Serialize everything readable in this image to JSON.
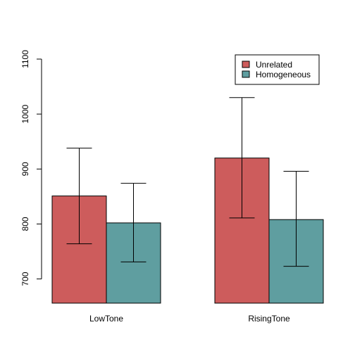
{
  "chart_data": {
    "type": "bar",
    "title": "",
    "xlabel": "",
    "ylabel": "",
    "categories": [
      "LowTone",
      "RisingTone"
    ],
    "series": [
      {
        "name": "Unrelated",
        "color": "#CD5C5C",
        "values": [
          851,
          920
        ],
        "error_low": [
          764,
          811
        ],
        "error_high": [
          938,
          1030
        ]
      },
      {
        "name": "Homogeneous",
        "color": "#5F9EA0",
        "values": [
          802,
          808
        ],
        "error_low": [
          731,
          723
        ],
        "error_high": [
          874,
          896
        ]
      }
    ],
    "ylim": [
      656,
      1100
    ],
    "yticks": [
      700,
      800,
      900,
      1000,
      1100
    ],
    "ytick_labels": [
      "700",
      "800",
      "900",
      "1000",
      "1100"
    ],
    "legend": {
      "position": "top-right",
      "entries": [
        "Unrelated",
        "Homogeneous"
      ]
    },
    "grid": false,
    "error_bars": true
  }
}
